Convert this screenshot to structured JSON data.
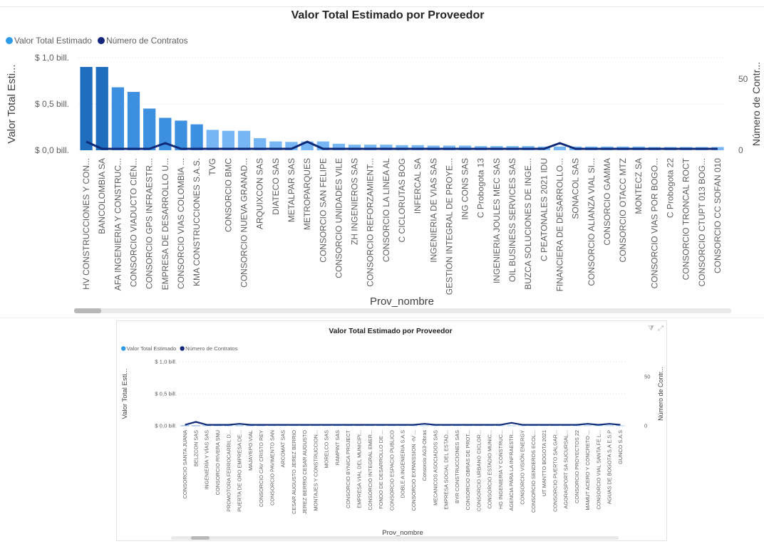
{
  "chart_data": [
    {
      "type": "bar",
      "title": "Valor Total Estimado por Proveedor",
      "legend": [
        "Valor Total Estimado",
        "Número de Contratos"
      ],
      "legend_position": "top-left",
      "xlabel": "Prov_nombre",
      "ylabel": "Valor Total Esti...",
      "y2label": "Número de Contr...",
      "yticks": [
        "$ 1,0 bill.",
        "$ 0,5 bill.",
        "$ 0,0 bill."
      ],
      "y2ticks": [
        "50",
        "0"
      ],
      "ylim": [
        0,
        1.0
      ],
      "y2lim": [
        0,
        65
      ],
      "categories": [
        "HV CONSTRUCCIONES Y CON...",
        "BANCOLOMBIA SA",
        "AFA INGENIERIA Y CONSTRUC...",
        "CONSORCIO VIADUCTO CIÉN...",
        "CONSORCIO GPS INFRAESTR...",
        "EMPRESA DE DESARROLLO U...",
        "CONSORCIO VIAS COLOMBIA ...",
        "KMA CONSTRUCCIONES S.A.S.",
        "TVG",
        "CONSORCIO BMC",
        "CONSORCIO NUEVA GRANAD...",
        "ARQUIXCON SAS",
        "DIATECO SAS",
        "METALPAR SAS",
        "METROPARQUES",
        "CONSORCIO SAN FELIPE",
        "CONSORCIO UNIDADES VILE",
        "ZH INGENIEROS SAS",
        "CONSORCIO REFORZAMIENT...",
        "CONSORCIO LA LINEA AL",
        "C CICLORUTAS BOG",
        "INFERCAL SA",
        "INGENIERIA DE VIAS SAS",
        "GESTIÓN INTEGRAL DE PROYE...",
        "ING CONS SAS",
        "C Probogota 13",
        "INGENIERIA JOULES MEC SAS",
        "OIL BUSINESS SERVICES SAS",
        "BUZCA SOLUCIONES DE INGE...",
        "C PEATONALES 2021 IDU",
        "FINANCIERA DE DESARROLLO...",
        "SONACOL SAS",
        "CONSORCIO ALIANZA VIAL SI...",
        "CONSORCIO GAMMA",
        "CONSORCIO OTACC MTZ",
        "MONTECZ SA",
        "CONSORCIO VIAS POR BOGO...",
        "C Probogota 22",
        "CONSORCIO TRONCAL ROCT",
        "CONSORCIO CTUPT 013 BOG...",
        "CONSORCIO CC SOFAN 010"
      ],
      "series": [
        {
          "name": "Valor Total Estimado",
          "values": [
            0.9,
            0.9,
            0.68,
            0.63,
            0.45,
            0.35,
            0.32,
            0.28,
            0.22,
            0.21,
            0.21,
            0.13,
            0.095,
            0.09,
            0.095,
            0.095,
            0.07,
            0.06,
            0.06,
            0.06,
            0.055,
            0.055,
            0.05,
            0.05,
            0.05,
            0.045,
            0.045,
            0.045,
            0.045,
            0.04,
            0.04,
            0.04,
            0.04,
            0.04,
            0.04,
            0.04,
            0.035,
            0.035,
            0.035,
            0.035,
            0.035
          ]
        },
        {
          "name": "Número de Contratos",
          "values": [
            6,
            1,
            1,
            1,
            1,
            5,
            1,
            1,
            1,
            1,
            1,
            1,
            1,
            1,
            6,
            1,
            1,
            1,
            1,
            1,
            1,
            1,
            1,
            1,
            1,
            1,
            1,
            1,
            1,
            1,
            5,
            1,
            1,
            1,
            1,
            1,
            1,
            1,
            1,
            1,
            1
          ]
        }
      ]
    },
    {
      "type": "bar",
      "title": "Valor Total Estimado por Proveedor",
      "legend": [
        "Valor Total Estimado",
        "Número de Contratos"
      ],
      "legend_position": "top-left",
      "xlabel": "Prov_nombre",
      "ylabel": "Valor Total Esti...",
      "y2label": "Número de Contr...",
      "yticks": [
        "$ 1,0 bill.",
        "$ 0,5 bill.",
        "$ 0,0 bill."
      ],
      "y2ticks": [
        "50",
        "0"
      ],
      "ylim": [
        0,
        1.0
      ],
      "y2lim": [
        0,
        65
      ],
      "categories": [
        "CONSORCIO SANTA JUANA",
        "BELZCON SAS",
        "INGENIERÍA Y VÍAS SAS",
        "CONSORCIO RIVERA SNU",
        "PROMOTORA FERROCARRIL D...",
        "PUERTA DE ORO EMPRESA DE...",
        "MAJAYEPO VIAL",
        "CONSORCIO CAV CRISTO REY",
        "CONSORCIO PAVIMENTO SAN",
        "ARCOMAT SAS",
        "CESAR AUGUSTO JEREZ BERRIO",
        "JEREZ BERRIO CESAR AUGUSTO",
        "MONTAJES Y CONSTRUCCION...",
        "MORELCO SAS",
        "RAMPINT SAS",
        "CONSORCIO BYNICA PROJECT",
        "EMPRESA VIAL DEL MUNICIPI...",
        "CONSORCIO INTEGRAL EMER...",
        "FONDO DE DESARROLLO DE ...",
        "CONSORCIO ESPACIO PUBLICO",
        "DOBLE A INGENIERIA S.A.S",
        "CONSORCIO EXPANSSION -IV ...",
        "Consorcio AG3-Obras",
        "MECANICOS ASOCIADOS SAS",
        "EMPRESA SOCIAL DEL ESTAD...",
        "BYR CONSTRUCCIONES SAS",
        "CONSORCIO OBRAS DE PROT...",
        "CONSORCIO URBANO CICLOR...",
        "CONSORCIO ESTADIO MUNIC...",
        "HG INGENIERIA Y CONSTRUC...",
        "AGENCIA PARA LA INFRAESTR...",
        "CONSORCIO VISIÓN ENERGY",
        "CONSORCIO SENDEROS ECOL...",
        "UT MANTTO BOGOTA 2021",
        "CONSORCIO PUERTO SALGAR...",
        "AGORASPORT SA SUCURSAL...",
        "CONSORCIO PROYECTOS 22",
        "MAMUT ACERO Y CONCRETO ...",
        "CONSORCIO VIAL SANTA FE L...",
        "AGUAS DE BOGOTA S.A E.S.P",
        "GUNCO S.A.S"
      ],
      "series": [
        {
          "name": "Valor Total Estimado",
          "values": [
            0.004,
            0.004,
            0.004,
            0.004,
            0.004,
            0.004,
            0.004,
            0.004,
            0.004,
            0.004,
            0.004,
            0.004,
            0.004,
            0.004,
            0.004,
            0.004,
            0.004,
            0.004,
            0.004,
            0.004,
            0.004,
            0.004,
            0.004,
            0.004,
            0.004,
            0.004,
            0.004,
            0.004,
            0.004,
            0.004,
            0.004,
            0.004,
            0.004,
            0.004,
            0.004,
            0.004,
            0.004,
            0.004,
            0.004,
            0.004,
            0.004
          ]
        },
        {
          "name": "Número de Contratos",
          "values": [
            1,
            4,
            1,
            1,
            1,
            2,
            1,
            1,
            1,
            1,
            1,
            1,
            1,
            1,
            1,
            1,
            1,
            1,
            1,
            1,
            1,
            1,
            2,
            1,
            1,
            1,
            1,
            1,
            1,
            1,
            3,
            1,
            1,
            1,
            1,
            1,
            1,
            2,
            1,
            2,
            1
          ]
        }
      ]
    }
  ],
  "colors": {
    "bar_dark": "#1f6ebd",
    "bar_mid": "#3d8fe0",
    "bar_light": "#76b6f5",
    "line": "#0f2a78",
    "legend_value": "#2f9be8",
    "legend_count": "#12257a",
    "axis_text": "#605e5c",
    "title_text": "#252423",
    "grid": "#e1dfdd"
  },
  "header_icons": [
    "filter-icon",
    "focus-mode-icon"
  ]
}
